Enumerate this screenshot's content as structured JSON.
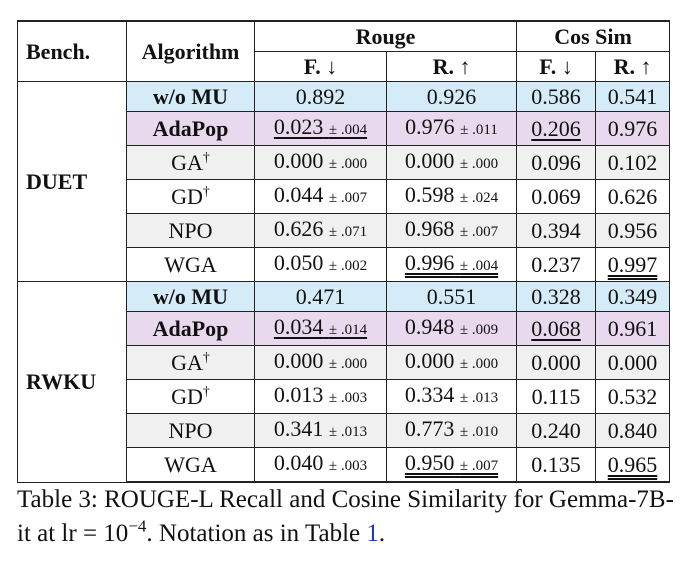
{
  "table": {
    "headers": {
      "bench": "Bench.",
      "algorithm": "Algorithm",
      "group1": "Rouge",
      "group2": "Cos Sim",
      "forget": "F. ↓",
      "retain": "R. ↑"
    },
    "sections": [
      {
        "bench": "DUET",
        "rows": [
          {
            "alg": "w/o MU",
            "rf": "0.892",
            "rf_sd": "",
            "rr": "0.926",
            "rr_sd": "",
            "cf": "0.586",
            "cr": "0.541"
          },
          {
            "alg": "AdaPop",
            "rf": "0.023",
            "rf_sd": "± .004",
            "rr": "0.976",
            "rr_sd": "± .011",
            "cf": "0.206",
            "cr": "0.976"
          },
          {
            "alg": "GA",
            "sup": "†",
            "rf": "0.000",
            "rf_sd": "± .000",
            "rr": "0.000",
            "rr_sd": "± .000",
            "cf": "0.096",
            "cr": "0.102"
          },
          {
            "alg": "GD",
            "sup": "†",
            "rf": "0.044",
            "rf_sd": "± .007",
            "rr": "0.598",
            "rr_sd": "± .024",
            "cf": "0.069",
            "cr": "0.626"
          },
          {
            "alg": "NPO",
            "rf": "0.626",
            "rf_sd": "± .071",
            "rr": "0.968",
            "rr_sd": "± .007",
            "cf": "0.394",
            "cr": "0.956"
          },
          {
            "alg": "WGA",
            "rf": "0.050",
            "rf_sd": "± .002",
            "rr": "0.996",
            "rr_sd": "± .004",
            "cf": "0.237",
            "cr": "0.997"
          }
        ]
      },
      {
        "bench": "RWKU",
        "rows": [
          {
            "alg": "w/o MU",
            "rf": "0.471",
            "rf_sd": "",
            "rr": "0.551",
            "rr_sd": "",
            "cf": "0.328",
            "cr": "0.349"
          },
          {
            "alg": "AdaPop",
            "rf": "0.034",
            "rf_sd": "± .014",
            "rr": "0.948",
            "rr_sd": "± .009",
            "cf": "0.068",
            "cr": "0.961"
          },
          {
            "alg": "GA",
            "sup": "†",
            "rf": "0.000",
            "rf_sd": "± .000",
            "rr": "0.000",
            "rr_sd": "± .000",
            "cf": "0.000",
            "cr": "0.000"
          },
          {
            "alg": "GD",
            "sup": "†",
            "rf": "0.013",
            "rf_sd": "± .003",
            "rr": "0.334",
            "rr_sd": "± .013",
            "cf": "0.115",
            "cr": "0.532"
          },
          {
            "alg": "NPO",
            "rf": "0.341",
            "rf_sd": "± .013",
            "rr": "0.773",
            "rr_sd": "± .010",
            "cf": "0.240",
            "cr": "0.840"
          },
          {
            "alg": "WGA",
            "rf": "0.040",
            "rf_sd": "± .003",
            "rr": "0.950",
            "rr_sd": "± .007",
            "cf": "0.135",
            "cr": "0.965"
          }
        ]
      }
    ],
    "colors": {
      "baseline": "#d5ecf8",
      "ours": "#e9d9ee",
      "shaded": "#f0f0f0"
    }
  },
  "caption": {
    "label": "Table 3:",
    "text_a": " ROUGE-L Recall and Cosine Similarity for Gemma-7B-it at lr = 10",
    "exponent": "−4",
    "text_b": ". Notation as in Table ",
    "ref": "1",
    "end": "."
  }
}
